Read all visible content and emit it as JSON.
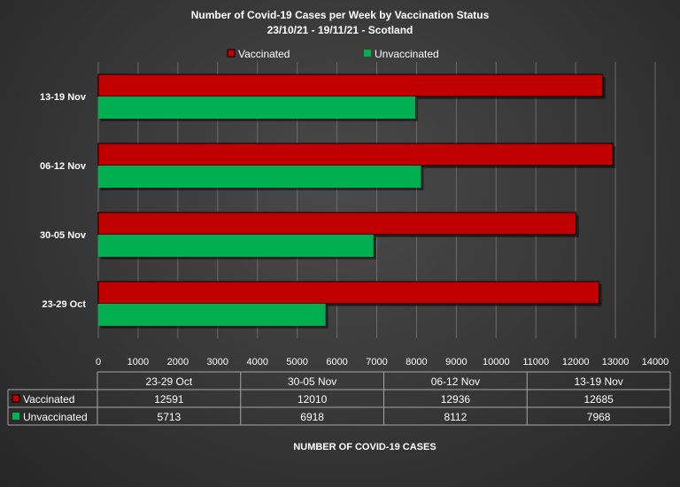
{
  "chart_data": {
    "type": "bar",
    "orientation": "horizontal",
    "title": "Number of Covid-19 Cases per Week by Vaccination Status",
    "subtitle": "23/10/21 - 19/11/21 - Scotland",
    "xlabel": "NUMBER OF COVID-19 CASES",
    "ylabel": "",
    "xlim": [
      0,
      14000
    ],
    "xticks": [
      0,
      1000,
      2000,
      3000,
      4000,
      5000,
      6000,
      7000,
      8000,
      9000,
      10000,
      11000,
      12000,
      13000,
      14000
    ],
    "categories": [
      "23-29 Oct",
      "30-05 Nov",
      "06-12 Nov",
      "13-19 Nov"
    ],
    "series": [
      {
        "name": "Vaccinated",
        "color": "#c00000",
        "values": [
          12591,
          12010,
          12936,
          12685
        ]
      },
      {
        "name": "Unvaccinated",
        "color": "#00b050",
        "values": [
          5713,
          6918,
          8112,
          7968
        ]
      }
    ],
    "legend": "top",
    "grid": true,
    "data_table": true
  }
}
